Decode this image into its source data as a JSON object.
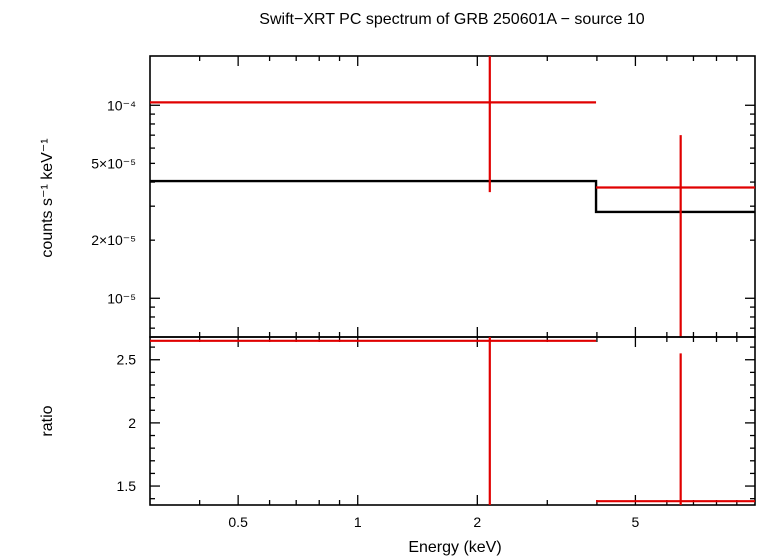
{
  "chart_data": [
    {
      "type": "line",
      "panel": "spectrum",
      "title": "Swift−XRT PC spectrum of GRB 250601A − source 10",
      "ylabel": "counts s⁻¹ keV⁻¹",
      "xscale": "log",
      "yscale": "log",
      "xlim": [
        0.3,
        10
      ],
      "ylim": [
        6.3e-06,
        0.00018
      ],
      "yticks": [
        {
          "value": 0.0001,
          "label": "10⁻⁴"
        },
        {
          "value": 5e-05,
          "label": "5×10⁻⁵"
        },
        {
          "value": 2e-05,
          "label": "2×10⁻⁵"
        },
        {
          "value": 1e-05,
          "label": "10⁻⁵"
        }
      ],
      "series": [
        {
          "kind": "data",
          "color": "#e00000",
          "points": [
            {
              "x": 2.15,
              "xlo": 0.3,
              "xhi": 3.98,
              "y": 0.0001035,
              "ylo": 3.55e-05,
              "yhi": 0.00018
            },
            {
              "x": 6.5,
              "xlo": 3.98,
              "xhi": 10,
              "y": 3.75e-05,
              "ylo": 6.3e-06,
              "yhi": 7e-05
            }
          ]
        },
        {
          "kind": "model",
          "color": "#000000",
          "steps": [
            {
              "xlo": 0.3,
              "xhi": 3.98,
              "y": 4.05e-05
            },
            {
              "xlo": 3.98,
              "xhi": 10,
              "y": 2.8e-05
            }
          ]
        }
      ]
    },
    {
      "type": "line",
      "panel": "ratio",
      "xlabel": "Energy (keV)",
      "ylabel": "ratio",
      "xscale": "log",
      "xlim": [
        0.3,
        10
      ],
      "ylim": [
        1.35,
        2.68
      ],
      "xticks": [
        {
          "value": 0.5,
          "label": "0.5"
        },
        {
          "value": 1,
          "label": "1"
        },
        {
          "value": 2,
          "label": "2"
        },
        {
          "value": 5,
          "label": "5"
        }
      ],
      "yticks": [
        {
          "value": 2.5,
          "label": "2.5"
        },
        {
          "value": 2,
          "label": "2"
        },
        {
          "value": 1.5,
          "label": "1.5"
        }
      ],
      "series": [
        {
          "kind": "ratio",
          "color": "#e00000",
          "points": [
            {
              "x": 2.15,
              "xlo": 0.3,
              "xhi": 3.98,
              "y": 2.65,
              "ylo": 1.35,
              "yhi": 2.68
            },
            {
              "x": 6.5,
              "xlo": 3.98,
              "xhi": 10,
              "y": 1.38,
              "ylo": 1.35,
              "yhi": 2.55
            }
          ]
        }
      ]
    }
  ]
}
